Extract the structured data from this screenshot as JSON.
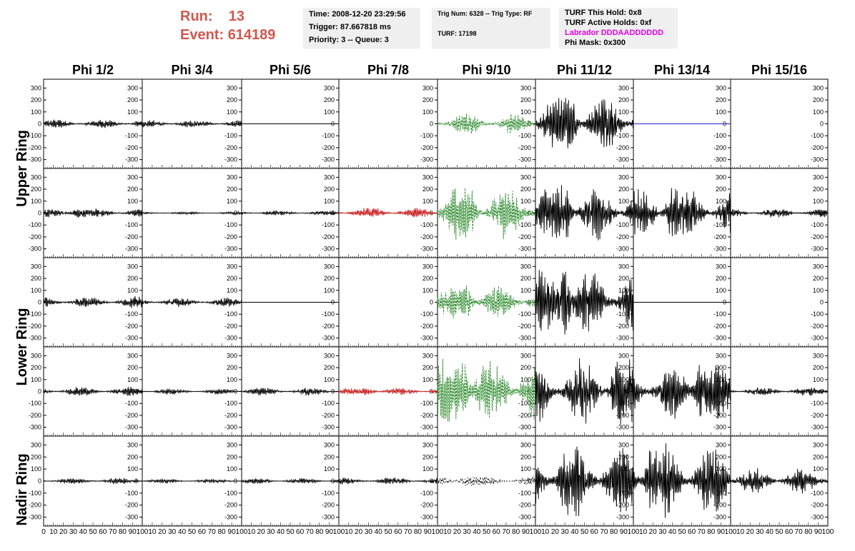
{
  "header": {
    "run_label": "Run:",
    "run_value": "13",
    "event_label": "Event:",
    "event_value": "614189"
  },
  "info": {
    "time": "Time: 2008-12-20 23:29:56",
    "trigger": "Trigger: 87.667818 ms",
    "priority": "Priority: 3 -- Queue: 3",
    "trig_num": "Trig Num: 6328 -- Trig Type: RF",
    "turf": "TURF: 17198",
    "turf_hold": "TURF This Hold: 0x8",
    "turf_active": "TURF Active Holds: 0xf",
    "labrador": "Labrador DDDAADDDDDD",
    "phi_mask": "Phi Mask: 0x300"
  },
  "colors": {
    "header_red": "#d0584d",
    "labrador_magenta": "#e400e4",
    "trace_black": "#000000",
    "trace_green": "#2e8b2e",
    "trace_red": "#c81e1e",
    "trace_blue": "#1e1ec8",
    "info_bg": "#efefef"
  },
  "chart_data": {
    "type": "line",
    "columns": [
      "Phi 1/2",
      "Phi 3/4",
      "Phi 5/6",
      "Phi 7/8",
      "Phi 9/10",
      "Phi 11/12",
      "Phi 13/14",
      "Phi 15/16"
    ],
    "rows": [
      "Upper Ring",
      "Upper Ring",
      "Lower Ring",
      "Lower Ring",
      "Nadir Ring"
    ],
    "row_labels": [
      "Upper Ring",
      "Lower Ring",
      "Nadir Ring"
    ],
    "ylim": [
      -350,
      350
    ],
    "xlim": [
      0,
      100
    ],
    "yticks": [
      "300",
      "200",
      "100",
      "0",
      "-100",
      "-200",
      "-300"
    ],
    "ytick_values": [
      300,
      200,
      100,
      0,
      -100,
      -200,
      -300
    ],
    "xticks": [
      "0",
      "10",
      "20",
      "30",
      "40",
      "50",
      "60",
      "70",
      "80",
      "90",
      "100"
    ],
    "xtick_values": [
      0,
      10,
      20,
      30,
      40,
      50,
      60,
      70,
      80,
      90,
      100
    ],
    "amplitude": [
      [
        40,
        35,
        0,
        null,
        90,
        230,
        0,
        null
      ],
      [
        40,
        12,
        20,
        45,
        230,
        230,
        210,
        40
      ],
      [
        50,
        40,
        0,
        null,
        140,
        290,
        0,
        null
      ],
      [
        40,
        25,
        35,
        30,
        290,
        290,
        240,
        40
      ],
      [
        30,
        20,
        25,
        30,
        40,
        310,
        320,
        110
      ]
    ],
    "burst_x": [
      [
        null,
        null,
        null,
        null,
        30,
        35,
        null,
        null
      ],
      [
        35,
        null,
        null,
        38,
        30,
        30,
        40,
        null
      ],
      [
        null,
        null,
        null,
        null,
        30,
        30,
        null,
        null
      ],
      [
        null,
        null,
        null,
        30,
        25,
        85,
        70,
        null
      ],
      [
        null,
        null,
        null,
        null,
        30,
        35,
        20,
        null
      ]
    ],
    "trace_color": [
      [
        "black",
        "black",
        "black",
        "none",
        "green",
        "black",
        "blue",
        "none"
      ],
      [
        "black",
        "black",
        "black",
        "red",
        "green",
        "black",
        "black",
        "black"
      ],
      [
        "black",
        "black",
        "black",
        "none",
        "green",
        "black",
        "black",
        "none"
      ],
      [
        "black",
        "black",
        "black",
        "red",
        "green",
        "black",
        "black",
        "black"
      ],
      [
        "black",
        "black",
        "black",
        "black",
        "black-dotted",
        "black",
        "black",
        "black"
      ]
    ]
  }
}
